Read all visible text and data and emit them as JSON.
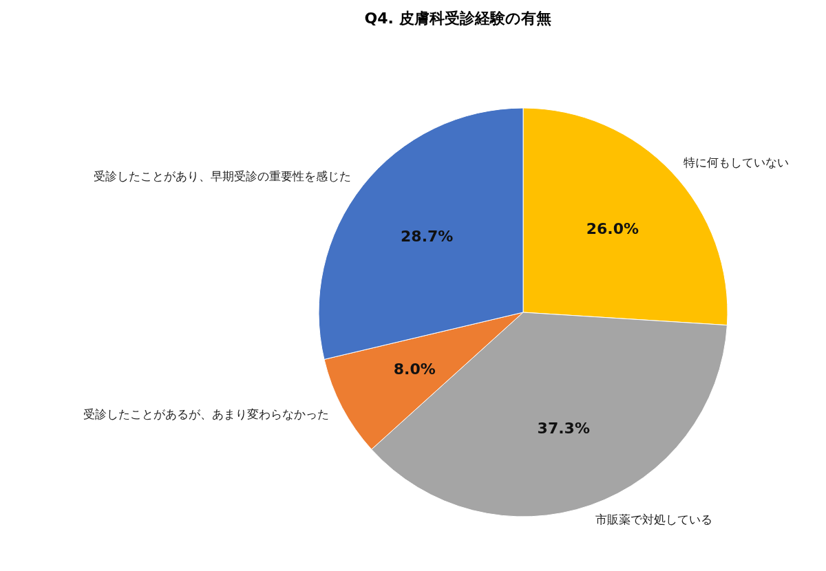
{
  "chart_data": {
    "type": "pie",
    "title": "Q4. 皮膚科受診経験の有無",
    "categories": [
      "特に何もしていない",
      "市販薬で対処している",
      "受診したことがあるが、あまり変わらなかった",
      "受診したことがあり、早期受診の重要性を感じた"
    ],
    "values": [
      26.0,
      37.3,
      8.0,
      28.7
    ],
    "colors": [
      "#ffc000",
      "#a5a5a5",
      "#ed7d31",
      "#4472c4"
    ],
    "value_labels": [
      "26.0%",
      "37.3%",
      "8.0%",
      "28.7%"
    ],
    "legend": false
  }
}
